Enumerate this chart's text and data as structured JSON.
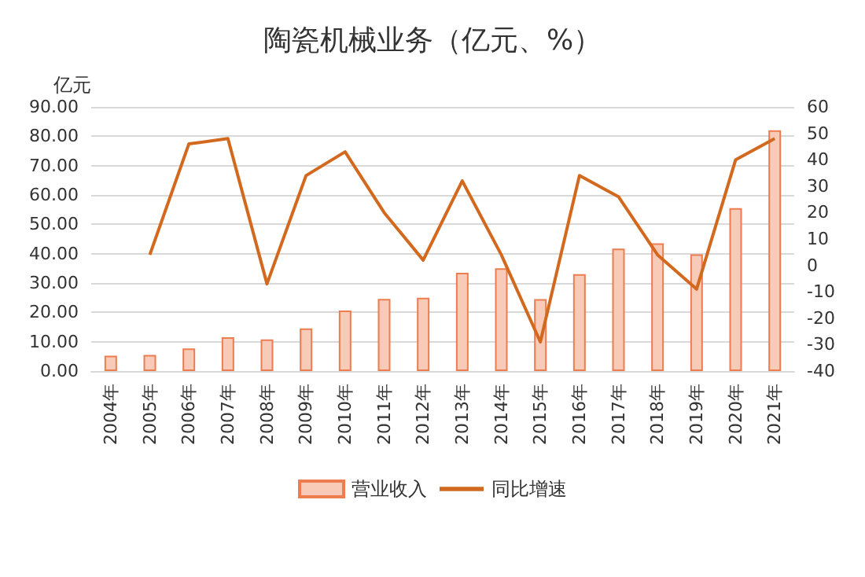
{
  "chart_data": {
    "type": "bar",
    "title": "陶瓷机械业务（亿元、%）",
    "ylabel": "亿元",
    "categories": [
      "2004年",
      "2005年",
      "2006年",
      "2007年",
      "2008年",
      "2009年",
      "2010年",
      "2011年",
      "2012年",
      "2013年",
      "2014年",
      "2015年",
      "2016年",
      "2017年",
      "2018年",
      "2019年",
      "2020年",
      "2021年"
    ],
    "series": [
      {
        "name": "营业收入",
        "color": "#f8cbb8",
        "values": [
          5.2,
          5.5,
          7.7,
          11.5,
          10.8,
          14.5,
          20.6,
          24.6,
          25.0,
          33.5,
          35.0,
          24.5,
          33.0,
          41.7,
          43.5,
          39.8,
          55.5,
          82.0
        ]
      },
      {
        "name": "同比增速",
        "type": "line",
        "axis": "y2",
        "color": "#d2691e",
        "values": [
          null,
          4,
          46,
          48,
          -7,
          34,
          43,
          20,
          2,
          32,
          4,
          -29,
          34,
          26,
          4,
          -9,
          40,
          48
        ]
      }
    ],
    "ylim": [
      0,
      90
    ],
    "yticks": [
      {
        "value": 0,
        "label": "0.00"
      },
      {
        "value": 10,
        "label": "10.00"
      },
      {
        "value": 20,
        "label": "20.00"
      },
      {
        "value": 30,
        "label": "30.00"
      },
      {
        "value": 40,
        "label": "40.00"
      },
      {
        "value": 50,
        "label": "50.00"
      },
      {
        "value": 60,
        "label": "60.00"
      },
      {
        "value": 70,
        "label": "70.00"
      },
      {
        "value": 80,
        "label": "80.00"
      },
      {
        "value": 90,
        "label": "90.00"
      }
    ],
    "y2lim": [
      -40,
      60
    ],
    "y2ticks": [
      -40,
      -30,
      -20,
      -10,
      0,
      10,
      20,
      30,
      40,
      50,
      60
    ],
    "grid": "y",
    "legend": "bottom",
    "marker": "none"
  }
}
